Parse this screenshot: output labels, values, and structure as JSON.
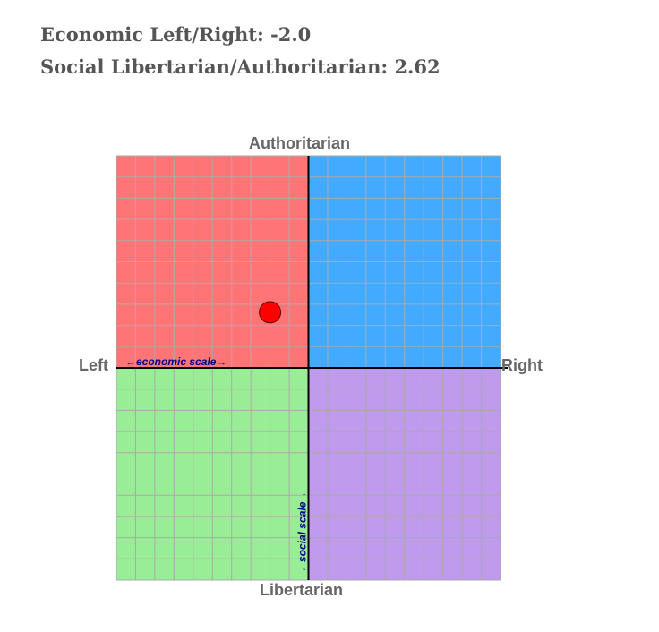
{
  "scores": {
    "economic_text": "Economic Left/Right: -2.0",
    "social_text": "Social Libertarian/Authoritarian: 2.62"
  },
  "chart_data": {
    "type": "scatter",
    "title": "",
    "axis_labels": {
      "top": "Authoritarian",
      "bottom": "Libertarian",
      "left": "Left",
      "right": "Right"
    },
    "scale_labels": {
      "economic": "←economic scale→",
      "social": "←social scale→"
    },
    "xlim": [
      -10,
      10
    ],
    "ylim": [
      -10,
      10
    ],
    "grid": true,
    "grid_step": 1,
    "quadrant_colors": {
      "authoritarian_left": "#ff7575",
      "authoritarian_right": "#42aaff",
      "libertarian_left": "#9aed97",
      "libertarian_right": "#c09aec"
    },
    "points": [
      {
        "x": -2.0,
        "y": 2.62,
        "color": "#ff0000"
      }
    ]
  }
}
